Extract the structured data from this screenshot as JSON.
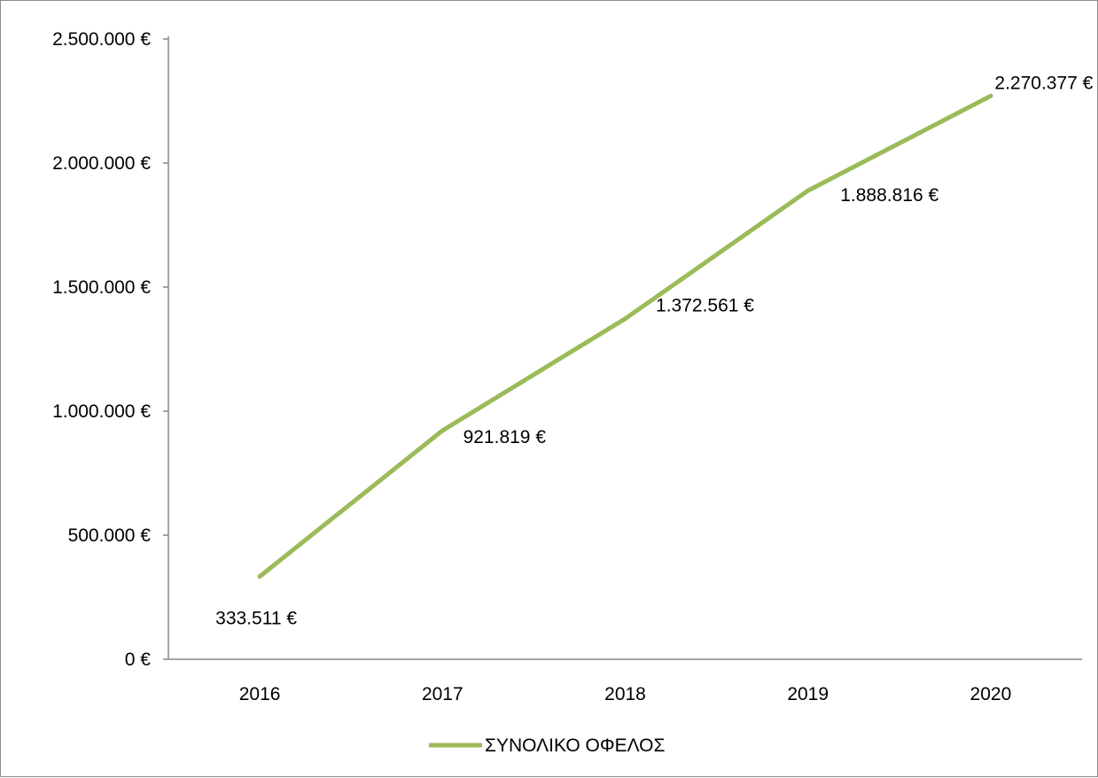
{
  "chart_data": {
    "type": "line",
    "categories": [
      "2016",
      "2017",
      "2018",
      "2019",
      "2020"
    ],
    "series": [
      {
        "name": "ΣΥΝΟΛΙΚΟ ΟΦΕΛΟΣ",
        "values": [
          333511,
          921819,
          1372561,
          1888816,
          2270377
        ],
        "labels": [
          "333.511 €",
          "921.819 €",
          "1.372.561 €",
          "1.888.816 €",
          "2.270.377 €"
        ],
        "color": "#9bbb59"
      }
    ],
    "title": "",
    "xlabel": "",
    "ylabel": "",
    "ylim": [
      0,
      2500000
    ],
    "yticks": [
      0,
      500000,
      1000000,
      1500000,
      2000000,
      2500000
    ],
    "ytick_labels": [
      "0 €",
      "500.000 €",
      "1.000.000 €",
      "1.500.000 €",
      "2.000.000 €",
      "2.500.000 €"
    ],
    "grid": false,
    "legend_position": "bottom"
  }
}
